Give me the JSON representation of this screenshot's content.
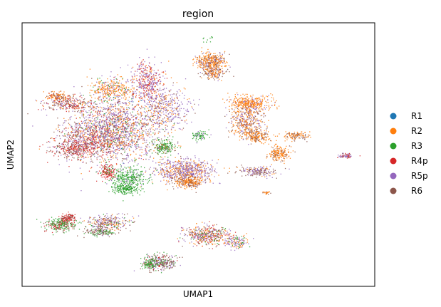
{
  "chart_data": {
    "type": "scatter",
    "title": "region",
    "xlabel": "UMAP1",
    "ylabel": "UMAP2",
    "xticks": [],
    "yticks": [],
    "grid": false,
    "legend_position": "right",
    "series": [
      {
        "name": "R1",
        "color": "#1f77b4"
      },
      {
        "name": "R2",
        "color": "#ff7f0e"
      },
      {
        "name": "R3",
        "color": "#2ca02c"
      },
      {
        "name": "R4p",
        "color": "#d62728"
      },
      {
        "name": "R5p",
        "color": "#9467bd"
      },
      {
        "name": "R6",
        "color": "#8c564b"
      }
    ]
  }
}
